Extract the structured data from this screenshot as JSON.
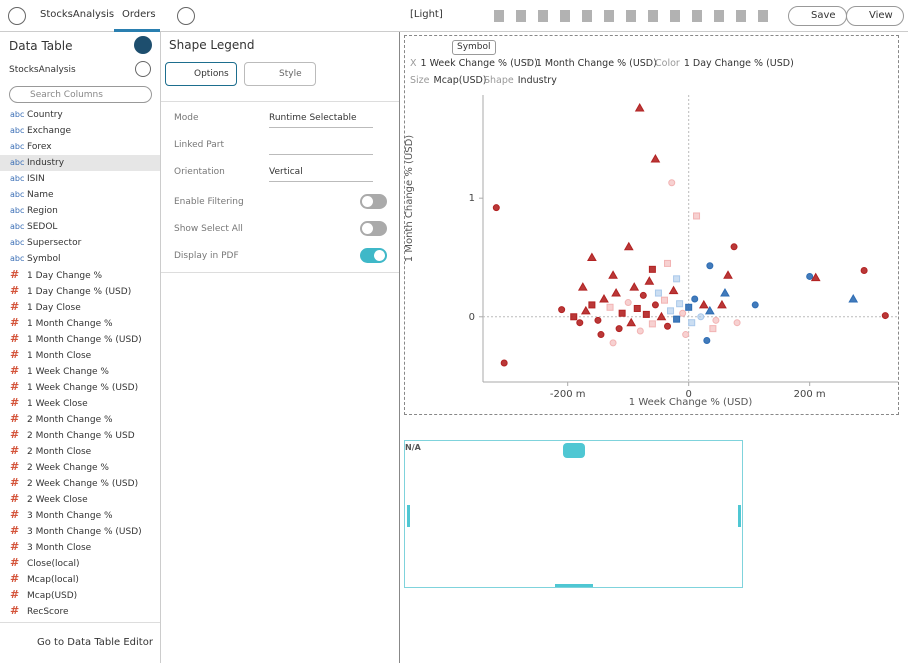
{
  "toolbar": {
    "tabs": [
      "StocksAnalysis",
      "Orders"
    ],
    "theme": "[Light]",
    "save": "Save",
    "view": "View"
  },
  "data_table": {
    "title": "Data Table",
    "source": "StocksAnalysis",
    "search_placeholder": "Search Columns",
    "columns": [
      {
        "kind": "abc",
        "name": "Country"
      },
      {
        "kind": "abc",
        "name": "Exchange"
      },
      {
        "kind": "abc",
        "name": "Forex"
      },
      {
        "kind": "abc",
        "name": "Industry"
      },
      {
        "kind": "abc",
        "name": "ISIN"
      },
      {
        "kind": "abc",
        "name": "Name"
      },
      {
        "kind": "abc",
        "name": "Region"
      },
      {
        "kind": "abc",
        "name": "SEDOL"
      },
      {
        "kind": "abc",
        "name": "Supersector"
      },
      {
        "kind": "abc",
        "name": "Symbol"
      },
      {
        "kind": "#",
        "name": "1 Day Change %"
      },
      {
        "kind": "#",
        "name": "1 Day Change % (USD)"
      },
      {
        "kind": "#",
        "name": "1 Day Close"
      },
      {
        "kind": "#",
        "name": "1 Month Change %"
      },
      {
        "kind": "#",
        "name": "1 Month Change % (USD)"
      },
      {
        "kind": "#",
        "name": "1 Month Close"
      },
      {
        "kind": "#",
        "name": "1 Week Change %"
      },
      {
        "kind": "#",
        "name": "1 Week Change % (USD)"
      },
      {
        "kind": "#",
        "name": "1 Week Close"
      },
      {
        "kind": "#",
        "name": "2 Month Change %"
      },
      {
        "kind": "#",
        "name": "2 Month Change % USD"
      },
      {
        "kind": "#",
        "name": "2 Month Close"
      },
      {
        "kind": "#",
        "name": "2 Week Change %"
      },
      {
        "kind": "#",
        "name": "2 Week Change % (USD)"
      },
      {
        "kind": "#",
        "name": "2 Week Close"
      },
      {
        "kind": "#",
        "name": "3 Month Change %"
      },
      {
        "kind": "#",
        "name": "3 Month Change % (USD)"
      },
      {
        "kind": "#",
        "name": "3 Month Close"
      },
      {
        "kind": "#",
        "name": "Close(local)"
      },
      {
        "kind": "#",
        "name": "Mcap(local)"
      },
      {
        "kind": "#",
        "name": "Mcap(USD)"
      },
      {
        "kind": "#",
        "name": "RecScore"
      }
    ],
    "footer": "Go to Data Table Editor"
  },
  "settings": {
    "title": "Shape Legend",
    "tabs": [
      "Options",
      "Style"
    ],
    "fields": [
      {
        "label": "Mode",
        "value": "Runtime Selectable"
      },
      {
        "label": "Linked Part"
      },
      {
        "label": "Orientation",
        "value": "Vertical"
      }
    ],
    "toggles": [
      {
        "label": "Enable Filtering",
        "on": false
      },
      {
        "label": "Show Select All",
        "on": false
      },
      {
        "label": "Display in PDF",
        "on": true
      }
    ]
  },
  "visualization": {
    "symbol_button": "Symbol",
    "mappings": [
      {
        "key": "X",
        "value": "1 Week Change % (USD)"
      },
      {
        "key": "Y",
        "value": "1 Month Change % (USD)"
      },
      {
        "key": "Color",
        "value": "1 Day Change % (USD)"
      },
      {
        "key": "Size",
        "value": "Mcap(USD)"
      },
      {
        "key": "Shape",
        "value": "Industry"
      }
    ],
    "chart": {
      "type": "scatter",
      "x_label": "1 Week Change % (USD)",
      "y_label": "1 Month Change % (USD)",
      "xlim": [
        -340,
        346
      ],
      "ylim": [
        -0.55,
        1.87
      ],
      "xticks": [
        {
          "value": -200,
          "label": "-200 m"
        },
        0,
        {
          "value": 200,
          "label": "200 m"
        }
      ],
      "yticks": [
        0,
        1
      ],
      "x": [
        -81,
        -55,
        -28,
        13,
        -318,
        -305,
        -99,
        75,
        35,
        200,
        290,
        325,
        272,
        210,
        -190,
        -180,
        -170,
        -160,
        -150,
        -140,
        -130,
        -120,
        -115,
        -110,
        -100,
        -95,
        -90,
        -85,
        -80,
        -75,
        -70,
        -65,
        -60,
        -55,
        -50,
        -45,
        -40,
        -35,
        -30,
        -25,
        -20,
        -15,
        -10,
        0,
        5,
        10,
        20,
        25,
        35,
        45,
        55,
        60,
        -210,
        -125,
        -175,
        -145,
        -60,
        -35,
        80,
        110,
        -5,
        40,
        65,
        -160,
        -125,
        -20,
        30
      ],
      "y": [
        1.76,
        1.33,
        1.13,
        0.85,
        0.92,
        -0.39,
        0.59,
        0.59,
        0.43,
        0.34,
        0.39,
        0.01,
        0.15,
        0.33,
        0.0,
        -0.05,
        0.05,
        0.1,
        -0.03,
        0.15,
        0.08,
        0.2,
        -0.1,
        0.03,
        0.12,
        -0.05,
        0.25,
        0.07,
        -0.12,
        0.18,
        0.02,
        0.3,
        -0.06,
        0.1,
        0.2,
        0.0,
        0.14,
        -0.08,
        0.05,
        0.22,
        -0.02,
        0.11,
        0.03,
        0.08,
        -0.05,
        0.15,
        0.0,
        0.1,
        0.05,
        -0.03,
        0.1,
        0.2,
        0.06,
        0.35,
        0.25,
        -0.15,
        0.4,
        0.45,
        -0.05,
        0.1,
        -0.15,
        -0.1,
        0.35,
        0.5,
        -0.22,
        0.32,
        -0.2
      ],
      "colors": [
        "#b22222",
        "#b22222",
        "#f2b3b3",
        "#f2b3b3",
        "#b22222",
        "#b22222",
        "#b22222",
        "#b22222",
        "#2e6db4",
        "#2e6db4",
        "#b22222",
        "#b22222",
        "#2e6db4",
        "#b22222",
        "#b22222",
        "#b22222",
        "#b22222",
        "#b22222",
        "#b22222",
        "#b22222",
        "#f2b3b3",
        "#b22222",
        "#b22222",
        "#b22222",
        "#f2b3b3",
        "#b22222",
        "#b22222",
        "#b22222",
        "#f2b3b3",
        "#b22222",
        "#b22222",
        "#b22222",
        "#f2b3b3",
        "#b22222",
        "#a9c8ea",
        "#b22222",
        "#f2b3b3",
        "#b22222",
        "#a9c8ea",
        "#b22222",
        "#2e6db4",
        "#a9c8ea",
        "#f2b3b3",
        "#2e6db4",
        "#a9c8ea",
        "#2e6db4",
        "#a9c8ea",
        "#b22222",
        "#2e6db4",
        "#f2b3b3",
        "#b22222",
        "#2e6db4",
        "#b22222",
        "#b22222",
        "#b22222",
        "#b22222",
        "#b22222",
        "#f2b3b3",
        "#f2b3b3",
        "#2e6db4",
        "#f2b3b3",
        "#f2b3b3",
        "#b22222",
        "#b22222",
        "#f2b3b3",
        "#a9c8ea",
        "#2e6db4"
      ],
      "shapes": [
        "triangle",
        "triangle",
        "circle",
        "square",
        "circle",
        "circle",
        "triangle",
        "circle",
        "circle",
        "circle",
        "circle",
        "circle",
        "triangle",
        "triangle",
        "square",
        "circle",
        "triangle",
        "square",
        "circle",
        "triangle",
        "square",
        "triangle",
        "circle",
        "square",
        "circle",
        "triangle",
        "triangle",
        "square",
        "circle",
        "circle",
        "square",
        "triangle",
        "square",
        "circle",
        "square",
        "triangle",
        "square",
        "circle",
        "square",
        "triangle",
        "square",
        "square",
        "circle",
        "square",
        "square",
        "circle",
        "circle",
        "triangle",
        "triangle",
        "circle",
        "triangle",
        "triangle",
        "circle",
        "triangle",
        "triangle",
        "circle",
        "square",
        "square",
        "circle",
        "circle",
        "circle",
        "square",
        "triangle",
        "triangle",
        "circle",
        "square",
        "circle"
      ]
    },
    "placeholder": "N/A"
  }
}
